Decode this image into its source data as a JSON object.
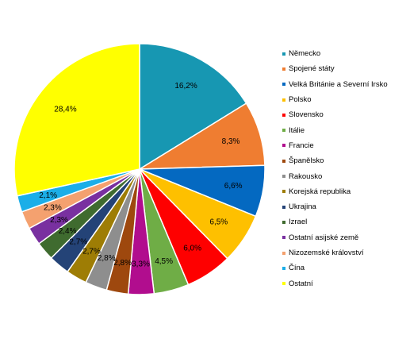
{
  "chart_data": {
    "type": "pie",
    "title": "",
    "start_angle_deg": 0,
    "direction": "clockwise",
    "legend_position": "right",
    "slices": [
      {
        "label": "Německo",
        "value": 16.2,
        "value_label": "16,2%",
        "color": "#1797B2"
      },
      {
        "label": "Spojené státy",
        "value": 8.3,
        "value_label": "8,3%",
        "color": "#EF7D31"
      },
      {
        "label": "Velká Británie a Severní Irsko",
        "value": 6.6,
        "value_label": "6,6%",
        "color": "#0469C1"
      },
      {
        "label": "Polsko",
        "value": 6.5,
        "value_label": "6,5%",
        "color": "#FEC000"
      },
      {
        "label": "Slovensko",
        "value": 6.0,
        "value_label": "6,0%",
        "color": "#FE0000"
      },
      {
        "label": "Itálie",
        "value": 4.5,
        "value_label": "4,5%",
        "color": "#6FAD46"
      },
      {
        "label": "Francie",
        "value": 3.3,
        "value_label": "3,3%",
        "color": "#B10D8E"
      },
      {
        "label": "Španělsko",
        "value": 2.8,
        "value_label": "2,8%",
        "color": "#9E480E"
      },
      {
        "label": "Rakousko",
        "value": 2.8,
        "value_label": "2,8%",
        "color": "#8E8E8E"
      },
      {
        "label": "Korejská republika",
        "value": 2.7,
        "value_label": "2,7%",
        "color": "#9E7D05"
      },
      {
        "label": "Ukrajina",
        "value": 2.7,
        "value_label": "2,7%",
        "color": "#244377"
      },
      {
        "label": "Izrael",
        "value": 2.4,
        "value_label": "2,4%",
        "color": "#3F6B2F"
      },
      {
        "label": "Ostatní asijské země",
        "value": 2.3,
        "value_label": "2,3%",
        "color": "#7930A0"
      },
      {
        "label": "Nizozemské království",
        "value": 2.3,
        "value_label": "2,3%",
        "color": "#F4A16F"
      },
      {
        "label": "Čína",
        "value": 2.1,
        "value_label": "2,1%",
        "color": "#1BAEE8"
      },
      {
        "label": "Ostatní",
        "value": 28.4,
        "value_label": "28,4%",
        "color": "#FFFF00"
      }
    ]
  }
}
